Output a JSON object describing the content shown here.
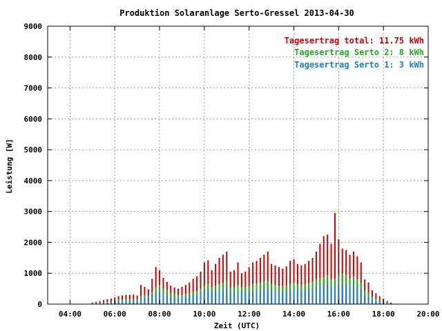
{
  "chart_data": {
    "type": "bar",
    "stacked": true,
    "title": "Produktion Solaranlage Serto-Gressel 2013-04-30",
    "xlabel": "Zeit (UTC)",
    "ylabel": "Leistung [W]",
    "xlim": [
      "03:00",
      "20:00"
    ],
    "ylim": [
      0,
      9000
    ],
    "xticks": [
      "04:00",
      "06:00",
      "08:00",
      "10:00",
      "12:00",
      "14:00",
      "16:00",
      "18:00",
      "20:00"
    ],
    "yticks": [
      "0",
      "1000",
      "2000",
      "3000",
      "4000",
      "5000",
      "6000",
      "7000",
      "8000",
      "9000"
    ],
    "grid": true,
    "legend_position": "top-right",
    "legend": [
      {
        "text": "Tagesertrag total: 11.75 kWh",
        "color": "#cc0000"
      },
      {
        "text": "Tagesertrag Serto 2: 8 kWh",
        "color": "#22aa22"
      },
      {
        "text": "Tagesertrag Serto 1: 3 kWh",
        "color": "#1a7fd4"
      }
    ],
    "x": [
      "05:00",
      "05:10",
      "05:20",
      "05:30",
      "05:40",
      "05:50",
      "06:00",
      "06:10",
      "06:20",
      "06:30",
      "06:40",
      "06:50",
      "07:00",
      "07:10",
      "07:20",
      "07:30",
      "07:40",
      "07:50",
      "08:00",
      "08:10",
      "08:20",
      "08:30",
      "08:40",
      "08:50",
      "09:00",
      "09:10",
      "09:20",
      "09:30",
      "09:40",
      "09:50",
      "10:00",
      "10:10",
      "10:20",
      "10:30",
      "10:40",
      "10:50",
      "11:00",
      "11:10",
      "11:20",
      "11:30",
      "11:40",
      "11:50",
      "12:00",
      "12:10",
      "12:20",
      "12:30",
      "12:40",
      "12:50",
      "13:00",
      "13:10",
      "13:20",
      "13:30",
      "13:40",
      "13:50",
      "14:00",
      "14:10",
      "14:20",
      "14:30",
      "14:40",
      "14:50",
      "15:00",
      "15:10",
      "15:20",
      "15:30",
      "15:40",
      "15:50",
      "16:00",
      "16:10",
      "16:20",
      "16:30",
      "16:40",
      "16:50",
      "17:00",
      "17:10",
      "17:20",
      "17:30",
      "17:40",
      "17:50",
      "18:00",
      "18:10",
      "18:20"
    ],
    "series": [
      {
        "name": "Serto 1",
        "color": "#1a7fd4",
        "values": [
          10,
          20,
          30,
          40,
          50,
          60,
          70,
          90,
          100,
          110,
          110,
          120,
          120,
          180,
          200,
          180,
          280,
          350,
          380,
          300,
          280,
          220,
          200,
          200,
          220,
          240,
          260,
          280,
          300,
          360,
          420,
          450,
          380,
          420,
          440,
          470,
          500,
          360,
          370,
          410,
          360,
          370,
          400,
          430,
          440,
          460,
          480,
          500,
          430,
          420,
          400,
          390,
          410,
          440,
          470,
          430,
          420,
          430,
          460,
          480,
          540,
          570,
          590,
          640,
          540,
          560,
          640,
          680,
          640,
          560,
          600,
          560,
          470,
          290,
          250,
          160,
          120,
          90,
          60,
          30,
          10
        ]
      },
      {
        "name": "Serto 2",
        "color": "#22aa22",
        "values": [
          20,
          40,
          50,
          60,
          70,
          90,
          110,
          140,
          150,
          160,
          160,
          170,
          160,
          260,
          300,
          280,
          400,
          550,
          620,
          500,
          450,
          350,
          320,
          300,
          300,
          330,
          360,
          400,
          430,
          500,
          600,
          650,
          550,
          600,
          640,
          690,
          740,
          530,
          550,
          610,
          540,
          550,
          600,
          650,
          660,
          690,
          720,
          750,
          650,
          620,
          590,
          580,
          610,
          650,
          700,
          640,
          620,
          640,
          690,
          720,
          800,
          850,
          880,
          940,
          800,
          830,
          940,
          1000,
          940,
          820,
          900,
          820,
          690,
          430,
          370,
          240,
          180,
          130,
          90,
          40,
          10
        ]
      },
      {
        "name": "Total",
        "color": "#cc0000",
        "values": [
          50,
          80,
          100,
          130,
          160,
          180,
          220,
          260,
          280,
          300,
          300,
          310,
          280,
          620,
          560,
          480,
          820,
          1200,
          1100,
          850,
          720,
          600,
          540,
          500,
          560,
          620,
          700,
          820,
          900,
          1050,
          1350,
          1420,
          1100,
          1300,
          1500,
          1600,
          1700,
          1050,
          1100,
          1350,
          1000,
          1050,
          1200,
          1350,
          1400,
          1500,
          1600,
          1700,
          1300,
          1250,
          1200,
          1150,
          1220,
          1400,
          1450,
          1300,
          1250,
          1300,
          1400,
          1500,
          1700,
          1950,
          2200,
          2250,
          1950,
          2950,
          2100,
          1800,
          1750,
          1600,
          1700,
          1550,
          1350,
          800,
          700,
          450,
          350,
          250,
          180,
          100,
          50
        ]
      }
    ]
  }
}
